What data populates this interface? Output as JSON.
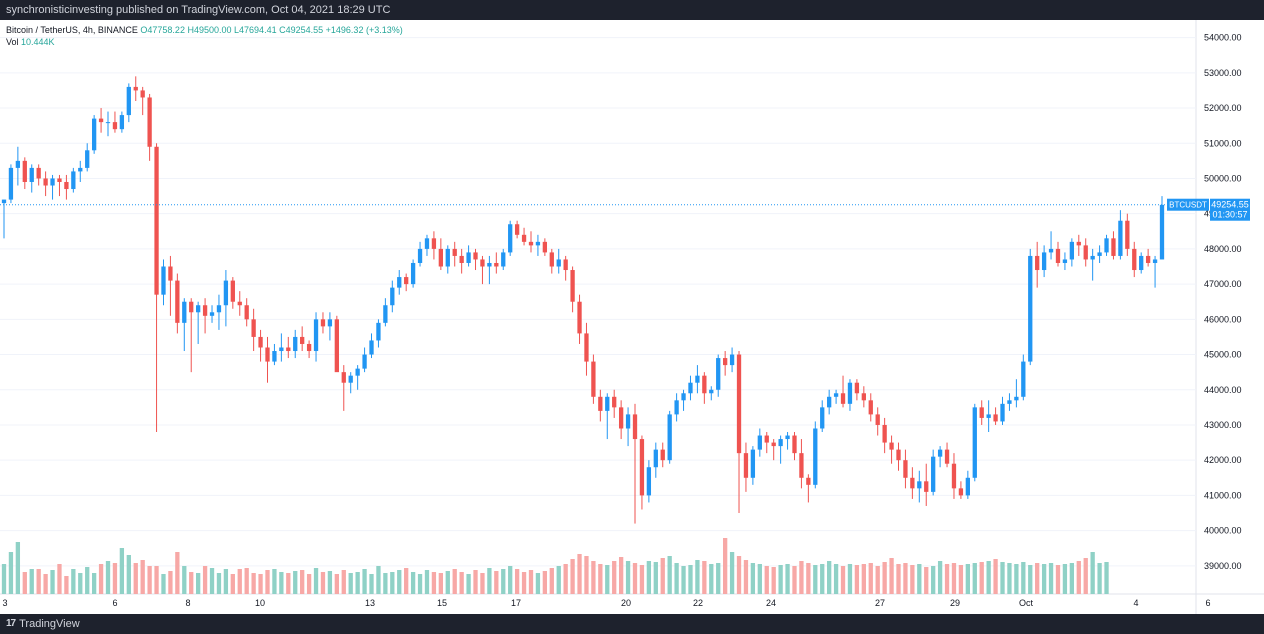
{
  "header": {
    "published": "synchronisticinvesting published on TradingView.com, Oct 04, 2021 18:29 UTC"
  },
  "footer": {
    "brand": "TradingView",
    "logo_mark": "17"
  },
  "legend": {
    "symbol": "Bitcoin / TetherUS, 4h, BINANCE",
    "open": "O47758.22",
    "high": "H49500.00",
    "low": "L47694.41",
    "close": "C49254.55",
    "change": "+1496.32 (+3.13%)",
    "vol_label": "Vol",
    "vol_value": "10.444K"
  },
  "price_label": {
    "ticker": "BTCUSDT",
    "price": "49254.55",
    "countdown": "01:30:57"
  },
  "colors": {
    "up": "#2196f3",
    "down": "#ef5350",
    "vol_up": "#8fd1c6",
    "vol_down": "#f7a8a6",
    "grid": "#f0f3fa"
  },
  "chart_data": {
    "type": "candlestick",
    "x_ticks": [
      "3",
      "6",
      "8",
      "10",
      "13",
      "15",
      "17",
      "20",
      "22",
      "24",
      "27",
      "29",
      "Oct",
      "4",
      "6"
    ],
    "y_ticks": [
      "39000.00",
      "40000.00",
      "41000.00",
      "42000.00",
      "43000.00",
      "44000.00",
      "45000.00",
      "46000.00",
      "47000.00",
      "48000.00",
      "49000.00",
      "50000.00",
      "51000.00",
      "52000.00",
      "53000.00",
      "54000.00"
    ],
    "y_range": [
      38200,
      54500
    ],
    "last_price": 49254.55,
    "candles": [
      [
        49300,
        49400,
        48300,
        49400
      ],
      [
        49400,
        50400,
        49300,
        50300
      ],
      [
        50300,
        50900,
        49800,
        50500
      ],
      [
        50500,
        50600,
        49700,
        49900
      ],
      [
        49900,
        50400,
        49600,
        50300
      ],
      [
        50300,
        50400,
        49800,
        50000
      ],
      [
        50000,
        50200,
        49500,
        49800
      ],
      [
        49800,
        50100,
        49400,
        50000
      ],
      [
        50000,
        50100,
        49500,
        49900
      ],
      [
        49900,
        50100,
        49400,
        49700
      ],
      [
        49700,
        50300,
        49600,
        50200
      ],
      [
        50200,
        50500,
        49900,
        50300
      ],
      [
        50300,
        51000,
        50200,
        50800
      ],
      [
        50800,
        51800,
        50700,
        51700
      ],
      [
        51700,
        52000,
        51300,
        51600
      ],
      [
        51600,
        51900,
        51200,
        51600
      ],
      [
        51600,
        51900,
        51300,
        51400
      ],
      [
        51400,
        51900,
        51300,
        51800
      ],
      [
        51800,
        52700,
        51600,
        52600
      ],
      [
        52600,
        52900,
        52200,
        52500
      ],
      [
        52500,
        52600,
        51800,
        52300
      ],
      [
        52300,
        52400,
        50500,
        50900
      ],
      [
        50900,
        51000,
        42800,
        46700
      ],
      [
        46700,
        47700,
        46400,
        47500
      ],
      [
        47500,
        47800,
        46100,
        47100
      ],
      [
        47100,
        47300,
        45600,
        45900
      ],
      [
        45900,
        46600,
        45100,
        46500
      ],
      [
        46500,
        46600,
        44500,
        46200
      ],
      [
        46200,
        46500,
        45300,
        46400
      ],
      [
        46400,
        46600,
        45600,
        46100
      ],
      [
        46100,
        46400,
        45900,
        46200
      ],
      [
        46200,
        46700,
        45700,
        46400
      ],
      [
        46400,
        47400,
        45800,
        47100
      ],
      [
        47100,
        47200,
        46300,
        46500
      ],
      [
        46500,
        46800,
        46100,
        46400
      ],
      [
        46400,
        46600,
        45800,
        46000
      ],
      [
        46000,
        46300,
        45100,
        45500
      ],
      [
        45500,
        45700,
        44800,
        45200
      ],
      [
        45200,
        45500,
        44200,
        44800
      ],
      [
        44800,
        45300,
        44700,
        45100
      ],
      [
        45100,
        45600,
        44800,
        45200
      ],
      [
        45200,
        45500,
        44900,
        45100
      ],
      [
        45100,
        45700,
        44900,
        45500
      ],
      [
        45500,
        45800,
        45100,
        45300
      ],
      [
        45300,
        45400,
        44900,
        45100
      ],
      [
        45100,
        46200,
        44800,
        46000
      ],
      [
        46000,
        46200,
        45600,
        45800
      ],
      [
        45800,
        46200,
        45400,
        46000
      ],
      [
        46000,
        46100,
        44600,
        44500
      ],
      [
        44500,
        44700,
        43400,
        44200
      ],
      [
        44200,
        44500,
        43900,
        44400
      ],
      [
        44400,
        44700,
        44000,
        44600
      ],
      [
        44600,
        45200,
        44500,
        45000
      ],
      [
        45000,
        45600,
        44900,
        45400
      ],
      [
        45400,
        46000,
        45200,
        45900
      ],
      [
        45900,
        46600,
        45800,
        46400
      ],
      [
        46400,
        47100,
        46200,
        46900
      ],
      [
        46900,
        47400,
        46700,
        47200
      ],
      [
        47200,
        47300,
        46800,
        47000
      ],
      [
        47000,
        47700,
        46900,
        47600
      ],
      [
        47600,
        48200,
        47500,
        48000
      ],
      [
        48000,
        48400,
        47800,
        48300
      ],
      [
        48300,
        48500,
        47700,
        48000
      ],
      [
        48000,
        48300,
        47400,
        47500
      ],
      [
        47500,
        48100,
        47300,
        48000
      ],
      [
        48000,
        48200,
        47500,
        47800
      ],
      [
        47800,
        48000,
        47300,
        47600
      ],
      [
        47600,
        48100,
        47500,
        47900
      ],
      [
        47900,
        48000,
        47400,
        47700
      ],
      [
        47700,
        47800,
        47000,
        47500
      ],
      [
        47500,
        47800,
        47000,
        47600
      ],
      [
        47600,
        47900,
        47300,
        47500
      ],
      [
        47500,
        48000,
        47400,
        47900
      ],
      [
        47900,
        48800,
        47800,
        48700
      ],
      [
        48700,
        48800,
        48300,
        48400
      ],
      [
        48400,
        48600,
        48100,
        48200
      ],
      [
        48200,
        48500,
        47900,
        48100
      ],
      [
        48100,
        48400,
        47800,
        48200
      ],
      [
        48200,
        48300,
        47800,
        47900
      ],
      [
        47900,
        48000,
        47300,
        47500
      ],
      [
        47500,
        48000,
        47300,
        47700
      ],
      [
        47700,
        47800,
        47100,
        47400
      ],
      [
        47400,
        47500,
        46200,
        46500
      ],
      [
        46500,
        46700,
        45300,
        45600
      ],
      [
        45600,
        45900,
        44400,
        44800
      ],
      [
        44800,
        45000,
        43600,
        43800
      ],
      [
        43800,
        44000,
        43100,
        43400
      ],
      [
        43400,
        43900,
        42600,
        43800
      ],
      [
        43800,
        44000,
        43200,
        43500
      ],
      [
        43500,
        43700,
        42600,
        42900
      ],
      [
        42900,
        43500,
        42400,
        43300
      ],
      [
        43300,
        43600,
        40200,
        42600
      ],
      [
        42600,
        42700,
        40600,
        41000
      ],
      [
        41000,
        42000,
        40800,
        41800
      ],
      [
        41800,
        42500,
        41500,
        42300
      ],
      [
        42300,
        42500,
        41800,
        42000
      ],
      [
        42000,
        43400,
        41900,
        43300
      ],
      [
        43300,
        43900,
        43100,
        43700
      ],
      [
        43700,
        44000,
        43400,
        43900
      ],
      [
        43900,
        44400,
        43700,
        44200
      ],
      [
        44200,
        44700,
        43900,
        44400
      ],
      [
        44400,
        44500,
        43600,
        43900
      ],
      [
        43900,
        44100,
        43700,
        44000
      ],
      [
        44000,
        45000,
        43800,
        44900
      ],
      [
        44900,
        45100,
        44400,
        44700
      ],
      [
        44700,
        45200,
        44500,
        45000
      ],
      [
        45000,
        45100,
        40500,
        42200
      ],
      [
        42200,
        42500,
        41100,
        41500
      ],
      [
        41500,
        42400,
        41300,
        42300
      ],
      [
        42300,
        42900,
        42100,
        42700
      ],
      [
        42700,
        42800,
        42200,
        42500
      ],
      [
        42500,
        42600,
        42000,
        42400
      ],
      [
        42400,
        42700,
        41900,
        42600
      ],
      [
        42600,
        42800,
        42300,
        42700
      ],
      [
        42700,
        42800,
        42000,
        42200
      ],
      [
        42200,
        42600,
        41200,
        41500
      ],
      [
        41500,
        41600,
        40800,
        41300
      ],
      [
        41300,
        43100,
        41200,
        42900
      ],
      [
        42900,
        43700,
        42800,
        43500
      ],
      [
        43500,
        44000,
        43300,
        43800
      ],
      [
        43800,
        44000,
        43600,
        43900
      ],
      [
        43900,
        44400,
        43500,
        43600
      ],
      [
        43600,
        44300,
        43400,
        44200
      ],
      [
        44200,
        44300,
        43700,
        43900
      ],
      [
        43900,
        44100,
        43500,
        43700
      ],
      [
        43700,
        43900,
        43100,
        43300
      ],
      [
        43300,
        43500,
        42700,
        43000
      ],
      [
        43000,
        43200,
        42200,
        42500
      ],
      [
        42500,
        42700,
        41900,
        42300
      ],
      [
        42300,
        42500,
        41700,
        42000
      ],
      [
        42000,
        42300,
        41200,
        41500
      ],
      [
        41500,
        41800,
        40900,
        41200
      ],
      [
        41200,
        41700,
        40800,
        41400
      ],
      [
        41400,
        41900,
        40700,
        41100
      ],
      [
        41100,
        42300,
        41000,
        42100
      ],
      [
        42100,
        42400,
        41800,
        42300
      ],
      [
        42300,
        42500,
        41800,
        41900
      ],
      [
        41900,
        42200,
        40900,
        41200
      ],
      [
        41200,
        41400,
        40900,
        41000
      ],
      [
        41000,
        41700,
        40900,
        41500
      ],
      [
        41500,
        43600,
        41400,
        43500
      ],
      [
        43500,
        43700,
        43000,
        43200
      ],
      [
        43200,
        43700,
        42800,
        43300
      ],
      [
        43300,
        43500,
        43000,
        43100
      ],
      [
        43100,
        43800,
        43000,
        43600
      ],
      [
        43600,
        43900,
        43400,
        43700
      ],
      [
        43700,
        44300,
        43500,
        43800
      ],
      [
        43800,
        45000,
        43700,
        44800
      ],
      [
        44800,
        48000,
        44700,
        47800
      ],
      [
        47800,
        48200,
        46900,
        47400
      ],
      [
        47400,
        48100,
        47200,
        47900
      ],
      [
        47900,
        48500,
        47700,
        48000
      ],
      [
        48000,
        48200,
        47500,
        47600
      ],
      [
        47600,
        47900,
        47400,
        47700
      ],
      [
        47700,
        48300,
        47500,
        48200
      ],
      [
        48200,
        48400,
        47800,
        48100
      ],
      [
        48100,
        48300,
        47500,
        47700
      ],
      [
        47700,
        48000,
        47100,
        47800
      ],
      [
        47800,
        48100,
        47600,
        47900
      ],
      [
        47900,
        48400,
        47800,
        48300
      ],
      [
        48300,
        48500,
        47700,
        47800
      ],
      [
        47800,
        49100,
        47700,
        48800
      ],
      [
        48800,
        49000,
        47800,
        48000
      ],
      [
        48000,
        48200,
        47200,
        47400
      ],
      [
        47400,
        47900,
        47300,
        47800
      ],
      [
        47800,
        48000,
        47500,
        47600
      ],
      [
        47600,
        47800,
        46900,
        47700
      ],
      [
        47700,
        49500,
        47700,
        49250
      ]
    ],
    "volumes": [
      0.3,
      0.42,
      0.52,
      0.22,
      0.25,
      0.25,
      0.2,
      0.24,
      0.3,
      0.18,
      0.25,
      0.21,
      0.27,
      0.21,
      0.3,
      0.33,
      0.31,
      0.46,
      0.39,
      0.31,
      0.34,
      0.28,
      0.28,
      0.2,
      0.23,
      0.42,
      0.28,
      0.22,
      0.21,
      0.28,
      0.26,
      0.21,
      0.25,
      0.2,
      0.25,
      0.26,
      0.21,
      0.2,
      0.24,
      0.25,
      0.22,
      0.21,
      0.23,
      0.24,
      0.2,
      0.26,
      0.22,
      0.23,
      0.2,
      0.24,
      0.21,
      0.22,
      0.25,
      0.2,
      0.28,
      0.21,
      0.22,
      0.24,
      0.26,
      0.22,
      0.2,
      0.24,
      0.22,
      0.21,
      0.23,
      0.25,
      0.22,
      0.2,
      0.24,
      0.21,
      0.26,
      0.23,
      0.25,
      0.28,
      0.25,
      0.22,
      0.24,
      0.21,
      0.23,
      0.26,
      0.28,
      0.3,
      0.35,
      0.4,
      0.38,
      0.33,
      0.3,
      0.29,
      0.33,
      0.37,
      0.33,
      0.31,
      0.29,
      0.33,
      0.32,
      0.36,
      0.38,
      0.31,
      0.28,
      0.29,
      0.34,
      0.33,
      0.3,
      0.31,
      0.56,
      0.42,
      0.38,
      0.34,
      0.31,
      0.3,
      0.28,
      0.27,
      0.29,
      0.3,
      0.28,
      0.33,
      0.31,
      0.29,
      0.3,
      0.33,
      0.3,
      0.28,
      0.3,
      0.29,
      0.3,
      0.31,
      0.28,
      0.32,
      0.36,
      0.3,
      0.31,
      0.29,
      0.3,
      0.27,
      0.28,
      0.33,
      0.3,
      0.31,
      0.29,
      0.3,
      0.31,
      0.32,
      0.33,
      0.35,
      0.32,
      0.31,
      0.3,
      0.32,
      0.29,
      0.31,
      0.3,
      0.31,
      0.29,
      0.3,
      0.31,
      0.33,
      0.36,
      0.42,
      0.31,
      0.32
    ],
    "volume_down_flags": [
      2,
      22,
      48,
      86,
      88,
      90,
      92,
      104
    ]
  }
}
